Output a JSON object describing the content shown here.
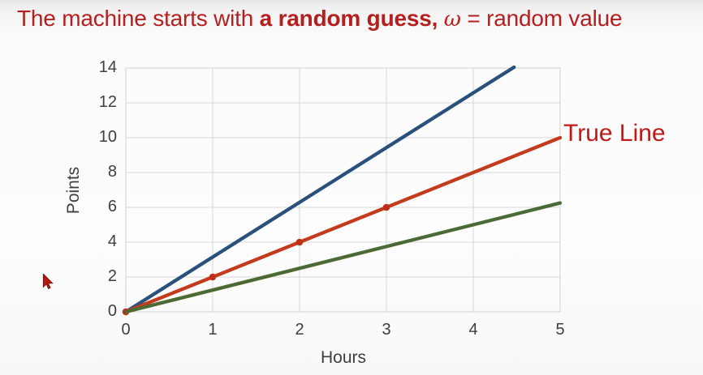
{
  "title": {
    "pre": "The machine starts with ",
    "bold": "a random guess",
    "comma": ", ",
    "omega": "ω",
    "post": " = random value"
  },
  "colors": {
    "title_red": "#b51f1f",
    "annotation_red": "#c01818",
    "axis_text": "#3f3f3f",
    "grid": "#d8d8d8",
    "line_blue": "#2a517c",
    "line_red": "#c33a1c",
    "line_green": "#4c6a33",
    "marker_red": "#bf3019",
    "cursor_red": "#b01a12"
  },
  "chart_data": {
    "type": "line",
    "title": "",
    "xlabel": "Hours",
    "ylabel": "Points",
    "xlim": [
      0,
      5
    ],
    "ylim": [
      0,
      14
    ],
    "x_ticks": [
      0,
      1,
      2,
      3,
      4,
      5
    ],
    "y_ticks": [
      0,
      2,
      4,
      6,
      8,
      10,
      12,
      14
    ],
    "grid": true,
    "legend_position": "none",
    "series": [
      {
        "name": "random-guess-steep-line",
        "color_key": "line_blue",
        "points": [
          [
            0,
            0
          ],
          [
            4.47,
            14.05
          ]
        ]
      },
      {
        "name": "true-line",
        "color_key": "line_red",
        "points": [
          [
            0,
            0
          ],
          [
            1,
            2
          ],
          [
            2,
            4
          ],
          [
            3,
            6
          ],
          [
            4,
            8
          ],
          [
            5,
            10
          ]
        ],
        "marker_points": [
          [
            0,
            0
          ],
          [
            1,
            2
          ],
          [
            2,
            4
          ],
          [
            3,
            6
          ]
        ],
        "marker_color_key": "marker_red"
      },
      {
        "name": "random-guess-shallow-line",
        "color_key": "line_green",
        "points": [
          [
            0,
            0
          ],
          [
            5,
            6.25
          ]
        ]
      }
    ],
    "annotation": {
      "text": "True Line",
      "target_series": "true-line"
    }
  }
}
